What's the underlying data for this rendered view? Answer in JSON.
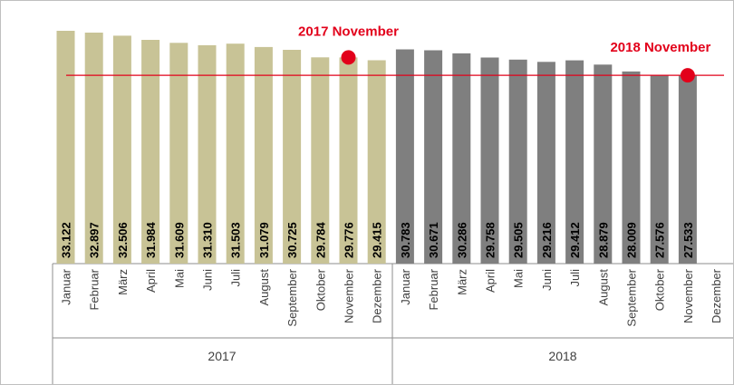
{
  "chart_data": {
    "type": "bar",
    "title": "",
    "xlabel": "",
    "ylabel": "",
    "ylim": [
      0,
      34000
    ],
    "grid": false,
    "legend": "none",
    "groups": [
      "2017",
      "2018"
    ],
    "categories": [
      "Januar",
      "Februar",
      "März",
      "April",
      "Mai",
      "Juni",
      "Juli",
      "August",
      "September",
      "Oktober",
      "November",
      "Dezember"
    ],
    "series": [
      {
        "group": "2017",
        "color": "#c8c396",
        "values": [
          33122,
          32897,
          32506,
          31984,
          31609,
          31310,
          31503,
          31079,
          30725,
          29784,
          29776,
          29415
        ],
        "labels": [
          "33.122",
          "32.897",
          "32.506",
          "31.984",
          "31.609",
          "31.310",
          "31.503",
          "31.079",
          "30.725",
          "29.784",
          "29.776",
          "29.415"
        ]
      },
      {
        "group": "2018",
        "color": "#7f7f7f",
        "values": [
          30783,
          30671,
          30286,
          29758,
          29505,
          29216,
          29412,
          28879,
          28009,
          27576,
          27533,
          null
        ],
        "labels": [
          "30.783",
          "30.671",
          "30.286",
          "29.758",
          "29.505",
          "29.216",
          "29.412",
          "28.879",
          "28.009",
          "27.576",
          "27.533",
          ""
        ]
      }
    ],
    "reference_line": {
      "value": 27533,
      "color": "#e2001a"
    },
    "annotations": [
      {
        "text": "2017 November",
        "group": "2017",
        "category": "November",
        "value": 29776,
        "color": "#e2001a"
      },
      {
        "text": "2018 November",
        "group": "2018",
        "category": "November",
        "value": 27533,
        "color": "#e2001a"
      }
    ]
  }
}
